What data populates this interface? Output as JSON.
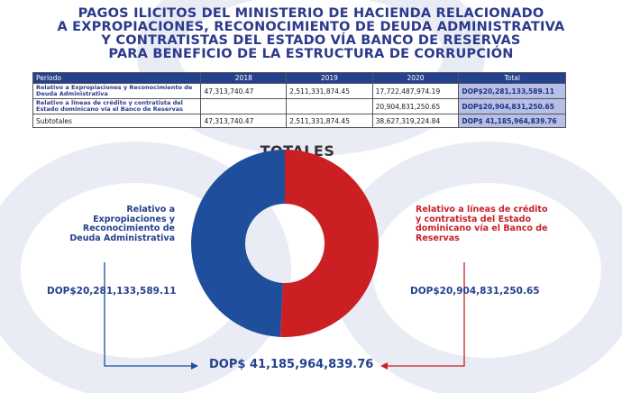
{
  "title_lines": [
    "PAGOS ILICITOS DEL MINISTERIO DE HACIENDA RELACIONADO",
    "A EXPROPIACIONES, RECONOCIMIENTO DE DEUDA ADMINISTRATIVA",
    "Y CONTRATISTAS DEL ESTADO VÍA BANCO DE RESERVAS",
    "PARA BENEFICIO DE LA ESTRUCTURA DE CORRUPCIÓN"
  ],
  "table": {
    "headers": [
      "Periodo",
      "2018",
      "2019",
      "2020",
      "Total"
    ],
    "rows": [
      {
        "label": "Relativo a Expropiaciones y Reconocimiento de Deuda Administrativa",
        "y2018": "47,313,740.47",
        "y2019": "2,511,331,874.45",
        "y2020": "17,722,487,974.19",
        "total": "DOP$20,281,133,589.11"
      },
      {
        "label": "Relativo a líneas de crédito y contratista del Estado dominicano vía el Banco de Reservas",
        "y2018": "",
        "y2019": "",
        "y2020": "20,904,831,250.65",
        "total": "DOP$20,904,831,250.65"
      },
      {
        "label": "Subtotales",
        "y2018": "47,313,740.47",
        "y2019": "2,511,331,874.45",
        "y2020": "38,627,319,224.84",
        "total": "DOP$ 41,185,964,839.76"
      }
    ]
  },
  "totals_heading": "TOTALES",
  "left_label": "Relativo a Expropiaciones y Reconocimiento de Deuda Administrativa",
  "right_label": "Relativo a líneas de crédito y contratista del Estado dominicano vía el Banco de Reservas",
  "left_value_text": "DOP$20,281,133,589.11",
  "right_value_text": "DOP$20,904,831,250.65",
  "total_text": "DOP$ 41,185,964,839.76",
  "colors": {
    "blue": "#1f4e9c",
    "red": "#cc1f24",
    "title": "#2b3a8c",
    "header": "#24418e",
    "total_cell": "#b7bfe6"
  },
  "chart_data": {
    "type": "pie",
    "donut": true,
    "slices": [
      {
        "label": "Relativo a Expropiaciones y Reconocimiento de Deuda Administrativa",
        "value": 20281133589.11,
        "color": "#1f4e9c"
      },
      {
        "label": "Relativo a líneas de crédito y contratista del Estado dominicano vía el Banco de Reservas",
        "value": 20904831250.65,
        "color": "#cc1f24"
      }
    ],
    "total": 41185964839.76
  }
}
